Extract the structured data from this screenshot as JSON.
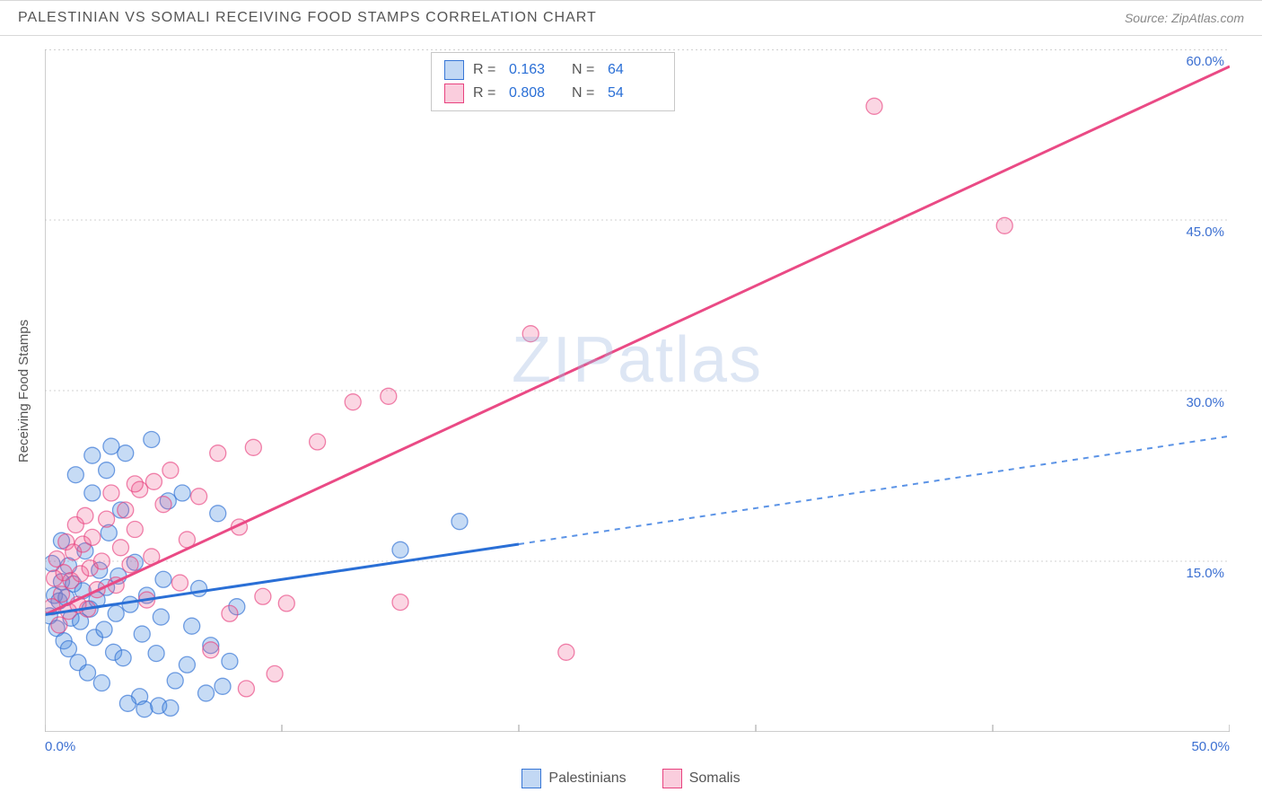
{
  "title": "PALESTINIAN VS SOMALI RECEIVING FOOD STAMPS CORRELATION CHART",
  "source_label": "Source: ZipAtlas.com",
  "y_axis_label": "Receiving Food Stamps",
  "watermark": "ZIPatlas",
  "chart": {
    "type": "scatter-with-trendlines",
    "xlim": [
      0,
      50
    ],
    "ylim": [
      0,
      60
    ],
    "x_ticks": [
      0,
      10,
      20,
      30,
      40,
      50
    ],
    "y_ticks": [
      15,
      30,
      45,
      60
    ],
    "x_tick_labels": [
      "0.0%",
      "",
      "",
      "",
      "",
      "50.0%"
    ],
    "y_tick_labels": [
      "15.0%",
      "30.0%",
      "45.0%",
      "60.0%"
    ],
    "background_color": "#ffffff",
    "grid_color": "#d0d0d0",
    "axis_color": "#bdbdbd",
    "marker_radius": 9,
    "series": [
      {
        "name": "Palestinians",
        "color_fill": "#4f8ee0",
        "color_stroke": "#3776d6",
        "r": 0.163,
        "n": 64,
        "trend": {
          "solid": {
            "x1": 0,
            "y1": 10.3,
            "x2": 20,
            "y2": 16.5
          },
          "dashed": {
            "x1": 20,
            "y1": 16.5,
            "x2": 50,
            "y2": 26.0
          },
          "color": "#2a6fd6",
          "width": 3
        },
        "points": [
          [
            0.2,
            10.2
          ],
          [
            0.3,
            14.8
          ],
          [
            0.4,
            12.0
          ],
          [
            0.5,
            9.1
          ],
          [
            0.6,
            11.5
          ],
          [
            0.7,
            13.2
          ],
          [
            0.7,
            16.8
          ],
          [
            0.8,
            8.0
          ],
          [
            0.9,
            11.8
          ],
          [
            1.0,
            14.6
          ],
          [
            1.0,
            7.3
          ],
          [
            1.1,
            10.0
          ],
          [
            1.2,
            13.0
          ],
          [
            1.3,
            22.6
          ],
          [
            1.4,
            6.1
          ],
          [
            1.5,
            9.7
          ],
          [
            1.6,
            12.4
          ],
          [
            1.7,
            15.9
          ],
          [
            1.8,
            5.2
          ],
          [
            1.9,
            10.8
          ],
          [
            2.0,
            21.0
          ],
          [
            2.1,
            8.3
          ],
          [
            2.2,
            11.6
          ],
          [
            2.3,
            14.2
          ],
          [
            2.4,
            4.3
          ],
          [
            2.5,
            9.0
          ],
          [
            2.6,
            12.7
          ],
          [
            2.7,
            17.5
          ],
          [
            2.8,
            25.1
          ],
          [
            2.9,
            7.0
          ],
          [
            3.0,
            10.4
          ],
          [
            3.1,
            13.7
          ],
          [
            3.2,
            19.5
          ],
          [
            3.3,
            6.5
          ],
          [
            3.4,
            24.5
          ],
          [
            3.6,
            11.2
          ],
          [
            3.8,
            14.9
          ],
          [
            4.0,
            3.1
          ],
          [
            4.1,
            8.6
          ],
          [
            4.3,
            12.0
          ],
          [
            4.5,
            25.7
          ],
          [
            4.7,
            6.9
          ],
          [
            4.9,
            10.1
          ],
          [
            5.0,
            13.4
          ],
          [
            5.2,
            20.3
          ],
          [
            5.5,
            4.5
          ],
          [
            5.8,
            21.0
          ],
          [
            6.0,
            5.9
          ],
          [
            6.2,
            9.3
          ],
          [
            6.5,
            12.6
          ],
          [
            6.8,
            3.4
          ],
          [
            7.0,
            7.6
          ],
          [
            7.3,
            19.2
          ],
          [
            7.5,
            4.0
          ],
          [
            7.8,
            6.2
          ],
          [
            8.1,
            11.0
          ],
          [
            3.5,
            2.5
          ],
          [
            4.2,
            2.0
          ],
          [
            4.8,
            2.3
          ],
          [
            5.3,
            2.1
          ],
          [
            2.0,
            24.3
          ],
          [
            2.6,
            23.0
          ],
          [
            15.0,
            16.0
          ],
          [
            17.5,
            18.5
          ]
        ]
      },
      {
        "name": "Somalis",
        "color_fill": "#ef5a8f",
        "color_stroke": "#e8427f",
        "r": 0.808,
        "n": 54,
        "trend": {
          "solid": {
            "x1": 0,
            "y1": 10.3,
            "x2": 50,
            "y2": 58.5
          },
          "color": "#ea4a85",
          "width": 3
        },
        "points": [
          [
            0.3,
            11.0
          ],
          [
            0.4,
            13.5
          ],
          [
            0.5,
            15.2
          ],
          [
            0.6,
            9.4
          ],
          [
            0.7,
            12.1
          ],
          [
            0.8,
            14.0
          ],
          [
            0.9,
            16.7
          ],
          [
            1.0,
            10.6
          ],
          [
            1.1,
            13.3
          ],
          [
            1.2,
            15.8
          ],
          [
            1.3,
            18.2
          ],
          [
            1.4,
            11.2
          ],
          [
            1.5,
            13.9
          ],
          [
            1.6,
            16.5
          ],
          [
            1.7,
            19.0
          ],
          [
            1.8,
            10.8
          ],
          [
            1.9,
            14.4
          ],
          [
            2.0,
            17.1
          ],
          [
            2.2,
            12.5
          ],
          [
            2.4,
            15.0
          ],
          [
            2.6,
            18.7
          ],
          [
            2.8,
            21.0
          ],
          [
            3.0,
            12.9
          ],
          [
            3.2,
            16.2
          ],
          [
            3.4,
            19.5
          ],
          [
            3.6,
            14.7
          ],
          [
            3.8,
            17.8
          ],
          [
            4.0,
            21.3
          ],
          [
            4.3,
            11.6
          ],
          [
            4.5,
            15.4
          ],
          [
            5.0,
            20.0
          ],
          [
            5.3,
            23.0
          ],
          [
            5.7,
            13.1
          ],
          [
            6.0,
            16.9
          ],
          [
            6.5,
            20.7
          ],
          [
            7.0,
            7.2
          ],
          [
            7.3,
            24.5
          ],
          [
            7.8,
            10.4
          ],
          [
            8.2,
            18.0
          ],
          [
            8.8,
            25.0
          ],
          [
            9.2,
            11.9
          ],
          [
            9.7,
            5.1
          ],
          [
            10.2,
            11.3
          ],
          [
            3.8,
            21.8
          ],
          [
            4.6,
            22.0
          ],
          [
            11.5,
            25.5
          ],
          [
            13.0,
            29.0
          ],
          [
            14.5,
            29.5
          ],
          [
            15.0,
            11.4
          ],
          [
            20.5,
            35.0
          ],
          [
            22.0,
            7.0
          ],
          [
            35.0,
            55.0
          ],
          [
            40.5,
            44.5
          ],
          [
            8.5,
            3.8
          ]
        ]
      }
    ]
  },
  "stat_box": {
    "rows": [
      {
        "swatch": "blue",
        "r_label": "R =",
        "r_val": "0.163",
        "n_label": "N =",
        "n_val": "64"
      },
      {
        "swatch": "pink",
        "r_label": "R =",
        "r_val": "0.808",
        "n_label": "N =",
        "n_val": "54"
      }
    ]
  },
  "bottom_legend": [
    {
      "swatch": "blue",
      "label": "Palestinians"
    },
    {
      "swatch": "pink",
      "label": "Somalis"
    }
  ]
}
